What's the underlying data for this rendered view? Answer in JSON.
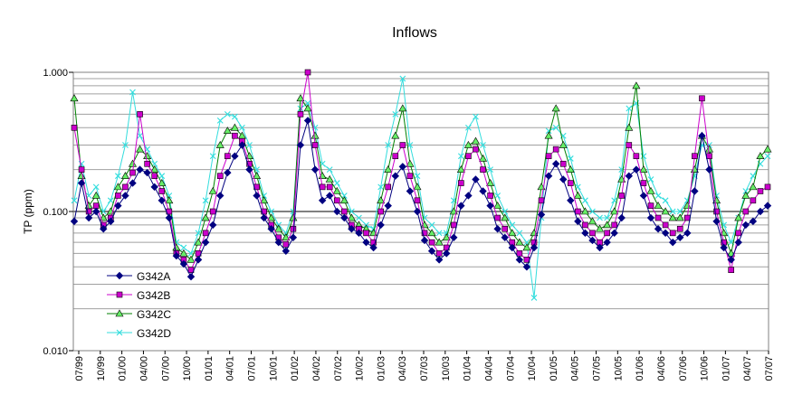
{
  "chart_data": {
    "type": "line",
    "title": "Inflows",
    "xlabel": "",
    "ylabel": "TP (ppm)",
    "y_scale": "log",
    "ylim": [
      0.01,
      1.0
    ],
    "y_ticks": [
      "0.010",
      "0.100",
      "1.000"
    ],
    "x_tick_labels": [
      "07/99",
      "10/99",
      "01/00",
      "04/00",
      "07/00",
      "10/00",
      "01/01",
      "04/01",
      "07/01",
      "10/01",
      "01/02",
      "04/02",
      "07/02",
      "10/02",
      "01/03",
      "04/03",
      "07/03",
      "10/03",
      "01/04",
      "04/04",
      "07/04",
      "10/04",
      "01/05",
      "04/05",
      "07/05",
      "10/05",
      "01/06",
      "04/06",
      "07/06",
      "10/06",
      "01/07",
      "04/07",
      "07/07"
    ],
    "legend_position": "lower-left",
    "grid": "horizontal",
    "series": [
      {
        "name": "G342A",
        "color": "#000080",
        "marker": "diamond",
        "values": [
          0.085,
          0.16,
          0.09,
          0.1,
          0.075,
          0.085,
          0.11,
          0.13,
          0.16,
          0.2,
          0.19,
          0.15,
          0.12,
          0.09,
          0.048,
          0.042,
          0.034,
          0.045,
          0.06,
          0.08,
          0.13,
          0.19,
          0.25,
          0.3,
          0.2,
          0.13,
          0.09,
          0.075,
          0.06,
          0.052,
          0.065,
          0.3,
          0.45,
          0.2,
          0.12,
          0.13,
          0.1,
          0.09,
          0.075,
          0.07,
          0.06,
          0.055,
          0.08,
          0.11,
          0.18,
          0.21,
          0.14,
          0.1,
          0.062,
          0.052,
          0.045,
          0.05,
          0.065,
          0.11,
          0.13,
          0.17,
          0.14,
          0.11,
          0.075,
          0.065,
          0.055,
          0.045,
          0.04,
          0.055,
          0.095,
          0.18,
          0.22,
          0.17,
          0.12,
          0.085,
          0.07,
          0.062,
          0.055,
          0.06,
          0.07,
          0.09,
          0.18,
          0.2,
          0.13,
          0.09,
          0.075,
          0.07,
          0.06,
          0.065,
          0.07,
          0.14,
          0.35,
          0.2,
          0.085,
          0.055,
          0.045,
          0.06,
          0.08,
          0.085,
          0.1,
          0.11
        ]
      },
      {
        "name": "G342B",
        "color": "#cc00cc",
        "marker": "square",
        "values": [
          0.4,
          0.2,
          0.1,
          0.11,
          0.08,
          0.09,
          0.13,
          0.15,
          0.19,
          0.5,
          0.22,
          0.18,
          0.14,
          0.1,
          0.05,
          0.045,
          0.038,
          0.05,
          0.07,
          0.1,
          0.18,
          0.25,
          0.35,
          0.32,
          0.22,
          0.15,
          0.1,
          0.08,
          0.065,
          0.058,
          0.075,
          0.5,
          1.0,
          0.3,
          0.15,
          0.15,
          0.12,
          0.1,
          0.08,
          0.075,
          0.07,
          0.06,
          0.1,
          0.15,
          0.25,
          0.3,
          0.18,
          0.12,
          0.07,
          0.06,
          0.05,
          0.055,
          0.08,
          0.16,
          0.25,
          0.28,
          0.2,
          0.13,
          0.09,
          0.075,
          0.06,
          0.05,
          0.045,
          0.06,
          0.12,
          0.25,
          0.28,
          0.22,
          0.16,
          0.1,
          0.08,
          0.07,
          0.06,
          0.07,
          0.08,
          0.13,
          0.3,
          0.25,
          0.16,
          0.11,
          0.09,
          0.08,
          0.07,
          0.075,
          0.09,
          0.25,
          0.65,
          0.25,
          0.1,
          0.06,
          0.038,
          0.07,
          0.1,
          0.12,
          0.14,
          0.15
        ]
      },
      {
        "name": "G342C",
        "color": "#008000",
        "fill": "#66ee66",
        "marker": "triangle",
        "values": [
          0.65,
          0.18,
          0.11,
          0.13,
          0.09,
          0.1,
          0.15,
          0.18,
          0.22,
          0.28,
          0.25,
          0.2,
          0.16,
          0.12,
          0.055,
          0.05,
          0.045,
          0.06,
          0.09,
          0.14,
          0.3,
          0.38,
          0.4,
          0.35,
          0.25,
          0.18,
          0.12,
          0.09,
          0.075,
          0.065,
          0.09,
          0.65,
          0.55,
          0.35,
          0.18,
          0.17,
          0.14,
          0.12,
          0.09,
          0.08,
          0.075,
          0.07,
          0.12,
          0.2,
          0.35,
          0.55,
          0.22,
          0.15,
          0.08,
          0.07,
          0.06,
          0.065,
          0.1,
          0.2,
          0.3,
          0.32,
          0.24,
          0.16,
          0.11,
          0.09,
          0.07,
          0.06,
          0.055,
          0.07,
          0.15,
          0.35,
          0.55,
          0.3,
          0.2,
          0.13,
          0.1,
          0.085,
          0.075,
          0.08,
          0.1,
          0.17,
          0.4,
          0.8,
          0.2,
          0.14,
          0.11,
          0.1,
          0.09,
          0.09,
          0.11,
          0.2,
          0.35,
          0.28,
          0.12,
          0.07,
          0.05,
          0.09,
          0.13,
          0.15,
          0.25,
          0.28
        ]
      },
      {
        "name": "G342D",
        "color": "#33dddd",
        "marker": "x",
        "values": [
          0.12,
          0.22,
          0.13,
          0.15,
          0.1,
          0.12,
          0.18,
          0.3,
          0.72,
          0.35,
          0.28,
          0.22,
          0.18,
          0.13,
          0.06,
          0.055,
          0.05,
          0.07,
          0.12,
          0.25,
          0.45,
          0.5,
          0.48,
          0.4,
          0.3,
          0.2,
          0.13,
          0.1,
          0.08,
          0.07,
          0.1,
          0.55,
          0.6,
          0.4,
          0.22,
          0.2,
          0.16,
          0.13,
          0.1,
          0.09,
          0.08,
          0.075,
          0.15,
          0.3,
          0.5,
          0.9,
          0.3,
          0.18,
          0.09,
          0.08,
          0.07,
          0.07,
          0.12,
          0.25,
          0.4,
          0.48,
          0.3,
          0.2,
          0.13,
          0.1,
          0.08,
          0.07,
          0.06,
          0.024,
          0.09,
          0.38,
          0.4,
          0.35,
          0.24,
          0.15,
          0.12,
          0.1,
          0.09,
          0.09,
          0.12,
          0.2,
          0.55,
          0.6,
          0.25,
          0.17,
          0.13,
          0.12,
          0.1,
          0.1,
          0.12,
          0.18,
          0.3,
          0.3,
          0.13,
          0.08,
          0.06,
          0.09,
          0.14,
          0.18,
          0.22,
          0.25
        ]
      }
    ]
  }
}
